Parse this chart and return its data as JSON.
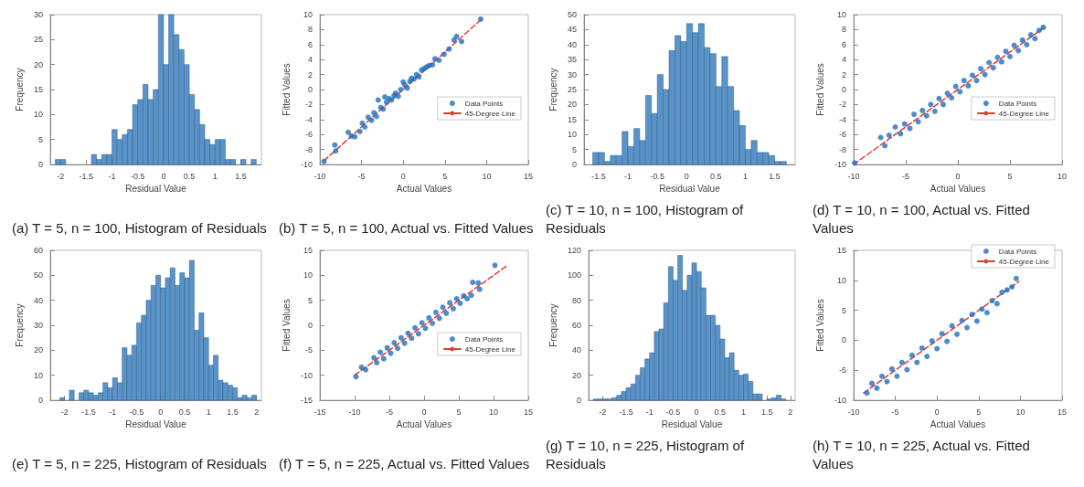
{
  "chart_data": [
    {
      "type": "histogram",
      "title": "(a) T = 5, n = 100, Histogram of Residuals",
      "xlabel": "Residual Value",
      "ylabel": "Frequency",
      "color": "#5a93c8",
      "grid": false,
      "xlim": [
        -2.2,
        1.9
      ],
      "xticks": [
        -2,
        -1.5,
        -1,
        -0.5,
        0,
        0.5,
        1,
        1.5
      ],
      "ylim": [
        0,
        30
      ],
      "yticks": [
        0,
        5,
        10,
        15,
        20,
        25,
        30
      ],
      "bins": [
        -2.1,
        -2.0,
        -1.9,
        -1.8,
        -1.7,
        -1.6,
        -1.5,
        -1.4,
        -1.3,
        -1.2,
        -1.1,
        -1.0,
        -0.9,
        -0.8,
        -0.7,
        -0.6,
        -0.5,
        -0.4,
        -0.3,
        -0.2,
        -0.1,
        0,
        0.1,
        0.2,
        0.3,
        0.4,
        0.5,
        0.6,
        0.7,
        0.8,
        0.9,
        1.0,
        1.1,
        1.2,
        1.3,
        1.4,
        1.5,
        1.6,
        1.7,
        1.8
      ],
      "values": [
        1,
        1,
        0,
        0,
        0,
        0,
        0,
        2,
        1,
        2,
        2,
        7,
        5,
        6,
        7,
        12,
        13,
        16,
        13,
        15,
        30,
        20,
        30,
        26,
        23,
        20,
        14,
        11,
        8,
        5,
        4,
        5,
        5,
        1,
        1,
        0,
        1,
        0,
        1
      ]
    },
    {
      "type": "scatter",
      "title": "(b) T = 5, n = 100, Actual vs. Fitted Values",
      "xlabel": "Actual Values",
      "ylabel": "Fitted Values",
      "grid": false,
      "legend": "right",
      "xlim": [
        -10,
        15
      ],
      "xticks": [
        -10,
        -5,
        0,
        5,
        10,
        15
      ],
      "ylim": [
        -10,
        10
      ],
      "yticks": [
        -10,
        -8,
        -6,
        -4,
        -2,
        0,
        2,
        4,
        6,
        8,
        10
      ],
      "series": [
        {
          "name": "Data Points",
          "type": "scatter",
          "marker": "circle",
          "color": "#1f6fbf",
          "x": [
            -9.5,
            -8.2,
            -8.1,
            -6.6,
            -6.2,
            -5.8,
            -5.2,
            -4.9,
            -4.6,
            -4.2,
            -3.8,
            -3.5,
            -3.2,
            -3.0,
            -2.7,
            -2.4,
            -2.2,
            -2.0,
            -1.7,
            -1.4,
            -1.1,
            -0.9,
            -0.6,
            -0.3,
            0,
            0.2,
            0.5,
            0.8,
            1.0,
            1.3,
            1.6,
            1.9,
            2.2,
            2.5,
            2.8,
            3.1,
            3.5,
            3.8,
            4.3,
            4.9,
            5.5,
            6.1,
            6.4,
            7.0,
            9.3
          ],
          "values": [
            -9.6,
            -7.4,
            -8.2,
            -5.7,
            -6.2,
            -6.3,
            -5.6,
            -4.5,
            -5.0,
            -3.7,
            -4.1,
            -3.1,
            -3.6,
            -1.4,
            -2.4,
            -2.6,
            -1.0,
            -1.7,
            -1.2,
            -1.4,
            -0.8,
            -0.5,
            -0.9,
            0.0,
            1.0,
            0.6,
            0.2,
            1.1,
            1.5,
            1.4,
            2.0,
            1.7,
            2.6,
            2.8,
            3.0,
            3.2,
            3.3,
            4.1,
            3.9,
            4.7,
            5.4,
            6.6,
            7.1,
            6.4,
            9.4
          ]
        },
        {
          "name": "45-Degree Line",
          "type": "line",
          "marker": "none",
          "line_style": "dashed",
          "color": "#e03c31",
          "x": [
            -9.5,
            9.5
          ],
          "values": [
            -9.5,
            9.5
          ]
        }
      ]
    },
    {
      "type": "histogram",
      "title": "(c) T = 10, n = 100, Histogram of Residuals",
      "xlabel": "Residual Value",
      "ylabel": "Frequency",
      "color": "#5a93c8",
      "grid": false,
      "xlim": [
        -1.75,
        1.85
      ],
      "xticks": [
        -1.5,
        -1,
        -0.5,
        0,
        0.5,
        1,
        1.5
      ],
      "ylim": [
        0,
        50
      ],
      "yticks": [
        0,
        5,
        10,
        15,
        20,
        25,
        30,
        35,
        40,
        45,
        50
      ],
      "bins": [
        -1.6,
        -1.5,
        -1.4,
        -1.3,
        -1.2,
        -1.1,
        -1.0,
        -0.9,
        -0.8,
        -0.7,
        -0.6,
        -0.5,
        -0.4,
        -0.3,
        -0.2,
        -0.1,
        0,
        0.1,
        0.2,
        0.3,
        0.4,
        0.5,
        0.6,
        0.7,
        0.8,
        0.9,
        1.0,
        1.1,
        1.2,
        1.3,
        1.4,
        1.5,
        1.6,
        1.7
      ],
      "values": [
        4,
        4,
        1,
        3,
        3,
        11,
        6,
        12,
        8,
        23,
        17,
        30,
        25,
        38,
        43,
        41,
        47,
        44,
        47,
        39,
        37,
        26,
        36,
        26,
        18,
        13,
        5,
        8,
        4,
        4,
        3,
        1,
        1
      ]
    },
    {
      "type": "scatter",
      "title": "(d) T = 10, n = 100, Actual vs. Fitted Values",
      "xlabel": "Actual Values",
      "ylabel": "Fitted Values",
      "grid": false,
      "legend": "right",
      "xlim": [
        -10,
        10
      ],
      "xticks": [
        -10,
        -5,
        0,
        5,
        10
      ],
      "ylim": [
        -10,
        10
      ],
      "yticks": [
        -10,
        -8,
        -6,
        -4,
        -2,
        0,
        2,
        4,
        6,
        8,
        10
      ],
      "series": [
        {
          "name": "Data Points",
          "type": "scatter",
          "marker": "circle",
          "color": "#1f6fbf",
          "x": [
            -9.9,
            -7.4,
            -7.0,
            -6.6,
            -6.0,
            -5.5,
            -5.1,
            -4.6,
            -4.2,
            -3.8,
            -3.4,
            -3.0,
            -2.6,
            -2.2,
            -1.8,
            -1.4,
            -1.0,
            -0.6,
            -0.2,
            0.2,
            0.6,
            1.0,
            1.4,
            1.8,
            2.2,
            2.6,
            3.0,
            3.4,
            3.8,
            4.2,
            4.6,
            5.0,
            5.4,
            5.8,
            6.2,
            6.6,
            7.0,
            7.4,
            7.8,
            8.2
          ],
          "values": [
            -9.8,
            -6.4,
            -7.5,
            -6.1,
            -5.0,
            -5.9,
            -4.6,
            -5.2,
            -3.3,
            -4.3,
            -2.8,
            -3.5,
            -2.0,
            -2.9,
            -1.2,
            -2.0,
            -0.5,
            -1.1,
            0.4,
            -0.3,
            1.2,
            0.5,
            1.9,
            1.2,
            2.8,
            2.0,
            3.6,
            2.9,
            4.3,
            3.7,
            5.1,
            4.4,
            5.9,
            5.2,
            6.6,
            6.0,
            7.3,
            6.8,
            7.9,
            8.3
          ]
        },
        {
          "name": "45-Degree Line",
          "type": "line",
          "marker": "none",
          "line_style": "dashed",
          "color": "#e03c31",
          "x": [
            -10,
            8.3
          ],
          "values": [
            -10,
            8.3
          ]
        }
      ]
    },
    {
      "type": "histogram",
      "title": "(e) T = 5, n = 225, Histogram of Residuals",
      "xlabel": "Residual Value",
      "ylabel": "Frequency",
      "color": "#5a93c8",
      "grid": false,
      "xlim": [
        -2.3,
        2.1
      ],
      "xticks": [
        -2,
        -1.5,
        -1,
        -0.5,
        0,
        0.5,
        1,
        1.5,
        2
      ],
      "ylim": [
        0,
        60
      ],
      "yticks": [
        0,
        10,
        20,
        30,
        40,
        50,
        60
      ],
      "bins": [
        -2.1,
        -2.0,
        -1.9,
        -1.8,
        -1.7,
        -1.6,
        -1.5,
        -1.4,
        -1.3,
        -1.2,
        -1.1,
        -1.0,
        -0.9,
        -0.8,
        -0.7,
        -0.6,
        -0.5,
        -0.4,
        -0.3,
        -0.2,
        -0.1,
        0,
        0.1,
        0.2,
        0.3,
        0.4,
        0.5,
        0.6,
        0.7,
        0.8,
        0.9,
        1.0,
        1.1,
        1.2,
        1.3,
        1.4,
        1.5,
        1.6,
        1.7,
        1.8,
        1.9,
        2.0
      ],
      "values": [
        1,
        0,
        4,
        0,
        3,
        4,
        3,
        2,
        3,
        7,
        5,
        9,
        7,
        21,
        18,
        22,
        31,
        34,
        40,
        46,
        50,
        45,
        49,
        53,
        46,
        51,
        49,
        56,
        28,
        35,
        25,
        14,
        18,
        8,
        7,
        6,
        5,
        1,
        2,
        1,
        2
      ]
    },
    {
      "type": "scatter",
      "title": "(f) T = 5, n = 225, Actual vs. Fitted Values",
      "xlabel": "Actual Values",
      "ylabel": "Fitted Values",
      "grid": false,
      "legend": "right",
      "xlim": [
        -15,
        15
      ],
      "xticks": [
        -15,
        -10,
        -5,
        0,
        5,
        10,
        15
      ],
      "ylim": [
        -15,
        15
      ],
      "yticks": [
        -15,
        -10,
        -5,
        0,
        5,
        10,
        15
      ],
      "series": [
        {
          "name": "Data Points",
          "type": "scatter",
          "marker": "circle",
          "color": "#1f6fbf",
          "x": [
            -9.8,
            -9.0,
            -8.4,
            -7.2,
            -6.8,
            -6.3,
            -5.8,
            -5.3,
            -4.8,
            -4.3,
            -3.8,
            -3.3,
            -2.8,
            -2.3,
            -1.8,
            -1.3,
            -0.8,
            -0.3,
            0.2,
            0.7,
            1.2,
            1.7,
            2.2,
            2.7,
            3.2,
            3.7,
            4.2,
            4.7,
            5.2,
            5.7,
            6.2,
            6.8,
            7.0,
            7.8,
            8.0,
            10.2
          ],
          "values": [
            -10.3,
            -8.4,
            -8.9,
            -6.5,
            -7.5,
            -5.4,
            -6.7,
            -4.5,
            -5.6,
            -3.5,
            -4.6,
            -2.5,
            -3.6,
            -1.6,
            -2.6,
            -0.5,
            -1.7,
            0.5,
            -0.6,
            1.5,
            0.4,
            2.6,
            1.4,
            3.6,
            2.4,
            4.5,
            3.3,
            5.3,
            4.4,
            5.9,
            5.3,
            6.0,
            8.6,
            8.5,
            7.2,
            12.0
          ]
        },
        {
          "name": "45-Degree Line",
          "type": "line",
          "marker": "none",
          "line_style": "dashed",
          "color": "#e03c31",
          "x": [
            -10,
            12
          ],
          "values": [
            -10,
            12
          ]
        }
      ]
    },
    {
      "type": "histogram",
      "title": "(g) T = 10, n = 225, Histogram of Residuals",
      "xlabel": "Residual Value",
      "ylabel": "Frequency",
      "color": "#5a93c8",
      "grid": false,
      "xlim": [
        -2.3,
        2.1
      ],
      "xticks": [
        -2,
        -1.5,
        -1,
        -0.5,
        0,
        0.5,
        1,
        1.5,
        2
      ],
      "ylim": [
        0,
        120
      ],
      "yticks": [
        0,
        20,
        40,
        60,
        80,
        100,
        120
      ],
      "bins": [
        -2.2,
        -2.1,
        -2.0,
        -1.9,
        -1.8,
        -1.7,
        -1.6,
        -1.5,
        -1.4,
        -1.3,
        -1.2,
        -1.1,
        -1.0,
        -0.9,
        -0.8,
        -0.7,
        -0.6,
        -0.5,
        -0.4,
        -0.3,
        -0.2,
        -0.1,
        0,
        0.1,
        0.2,
        0.3,
        0.4,
        0.5,
        0.6,
        0.7,
        0.8,
        0.9,
        1.0,
        1.1,
        1.2,
        1.3,
        1.4,
        1.5,
        1.6,
        1.7,
        1.8,
        1.9
      ],
      "values": [
        1,
        1,
        1,
        1,
        2,
        4,
        7,
        10,
        13,
        20,
        26,
        33,
        38,
        55,
        57,
        78,
        107,
        96,
        116,
        88,
        100,
        110,
        103,
        90,
        68,
        68,
        60,
        49,
        34,
        38,
        24,
        20,
        21,
        15,
        5,
        5,
        0,
        1,
        2,
        4,
        1
      ]
    },
    {
      "type": "scatter",
      "title": "(h) T = 10, n = 225, Actual vs. Fitted Values",
      "xlabel": "Actual Values",
      "ylabel": "Fitted Values",
      "grid": false,
      "legend": "top right",
      "xlim": [
        -10,
        15
      ],
      "xticks": [
        -10,
        -5,
        0,
        5,
        10,
        15
      ],
      "ylim": [
        -10,
        15
      ],
      "yticks": [
        -10,
        -5,
        0,
        5,
        10,
        15
      ],
      "series": [
        {
          "name": "Data Points",
          "type": "scatter",
          "marker": "circle",
          "color": "#1f6fbf",
          "x": [
            -8.4,
            -7.8,
            -7.2,
            -6.6,
            -6.0,
            -5.4,
            -4.8,
            -4.2,
            -3.6,
            -3.0,
            -2.4,
            -1.8,
            -1.2,
            -0.6,
            0,
            0.6,
            1.2,
            1.8,
            2.4,
            3.0,
            3.6,
            4.2,
            4.8,
            5.4,
            6.0,
            6.6,
            7.2,
            7.8,
            8.4,
            9.0,
            9.5
          ],
          "values": [
            -8.8,
            -7.2,
            -8.0,
            -6.0,
            -6.9,
            -4.8,
            -6.0,
            -3.7,
            -4.9,
            -2.5,
            -3.7,
            -1.3,
            -2.7,
            -0.1,
            -1.4,
            1.1,
            -0.2,
            2.4,
            1.0,
            3.3,
            2.1,
            4.3,
            3.2,
            5.2,
            4.6,
            6.6,
            6.1,
            8.0,
            8.4,
            8.9,
            10.3
          ]
        },
        {
          "name": "45-Degree Line",
          "type": "line",
          "marker": "none",
          "line_style": "dashed",
          "color": "#e03c31",
          "x": [
            -8.8,
            9.8
          ],
          "values": [
            -8.8,
            9.8
          ]
        }
      ]
    }
  ]
}
